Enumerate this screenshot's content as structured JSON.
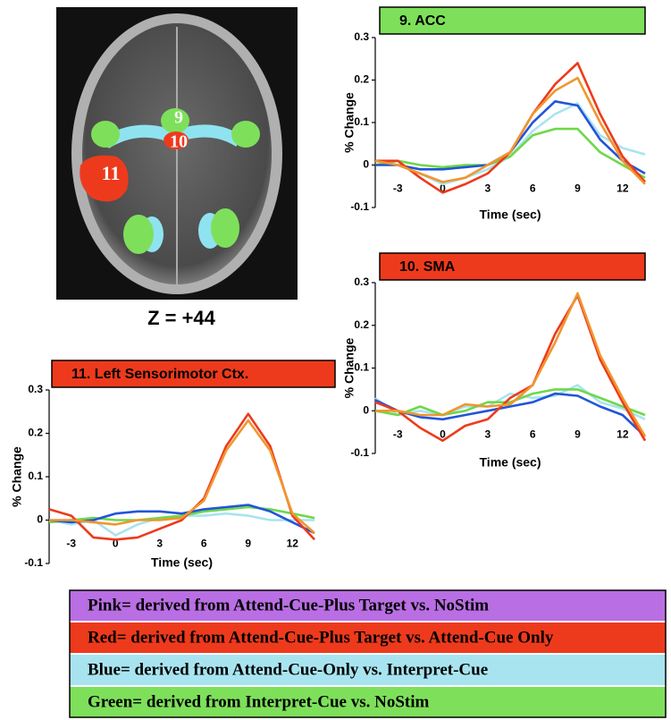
{
  "brain": {
    "labels": [
      "9",
      "10",
      "11"
    ],
    "caption": "Z = +44"
  },
  "chart_data": [
    {
      "type": "line",
      "title": "9. ACC",
      "title_color": "#7ee05a",
      "y_label": "% Change",
      "x_label": "Time (sec)",
      "x": [
        -4.5,
        -3,
        -1.5,
        0,
        1.5,
        3,
        4.5,
        6,
        7.5,
        9,
        10.5,
        12,
        13.5
      ],
      "xlim": [
        -4.5,
        13.5
      ],
      "xticks": [
        -3,
        0,
        3,
        6,
        9,
        12
      ],
      "ylim": [
        -0.1,
        0.3
      ],
      "yticks": [
        0.3,
        0.2,
        0.1,
        0,
        -0.1
      ],
      "series": [
        {
          "color": "#a8e4f0",
          "values": [
            0.01,
            0,
            -0.02,
            -0.045,
            -0.03,
            -0.01,
            0.02,
            0.08,
            0.12,
            0.145,
            0.07,
            0.04,
            0.025
          ]
        },
        {
          "color": "#6ed84a",
          "values": [
            0,
            0.01,
            0,
            -0.005,
            0,
            0,
            0.02,
            0.07,
            0.085,
            0.085,
            0.03,
            0,
            -0.03
          ]
        },
        {
          "color": "#2255d8",
          "values": [
            0,
            0,
            -0.01,
            -0.01,
            -0.005,
            0,
            0.03,
            0.1,
            0.15,
            0.14,
            0.06,
            0.01,
            -0.02
          ]
        },
        {
          "color": "#ee3a1c",
          "values": [
            0.01,
            0.01,
            -0.03,
            -0.065,
            -0.045,
            -0.02,
            0.03,
            0.12,
            0.19,
            0.24,
            0.12,
            0.02,
            -0.04
          ]
        },
        {
          "color": "#f0962e",
          "values": [
            0.01,
            0,
            -0.02,
            -0.04,
            -0.03,
            0,
            0.03,
            0.12,
            0.175,
            0.205,
            0.1,
            0.01,
            -0.045
          ]
        }
      ]
    },
    {
      "type": "line",
      "title": "10. SMA",
      "title_color": "#ee3a1c",
      "y_label": "% Change",
      "x_label": "Time (sec)",
      "x": [
        -4.5,
        -3,
        -1.5,
        0,
        1.5,
        3,
        4.5,
        6,
        7.5,
        9,
        10.5,
        12,
        13.5
      ],
      "xlim": [
        -4.5,
        13.5
      ],
      "xticks": [
        -3,
        0,
        3,
        6,
        9,
        12
      ],
      "ylim": [
        -0.1,
        0.3
      ],
      "yticks": [
        0.3,
        0.2,
        0.1,
        0,
        -0.1
      ],
      "series": [
        {
          "color": "#a8e4f0",
          "values": [
            0.03,
            -0.01,
            0,
            -0.01,
            0.01,
            0.01,
            0.04,
            0.03,
            0.035,
            0.06,
            0.02,
            0.005,
            -0.02
          ]
        },
        {
          "color": "#6ed84a",
          "values": [
            0,
            -0.01,
            0.01,
            -0.01,
            0,
            0.02,
            0.02,
            0.04,
            0.05,
            0.05,
            0.03,
            0.01,
            -0.01
          ]
        },
        {
          "color": "#2255d8",
          "values": [
            0.025,
            0,
            -0.015,
            -0.02,
            -0.01,
            0,
            0.01,
            0.02,
            0.04,
            0.035,
            0.01,
            -0.01,
            -0.06
          ]
        },
        {
          "color": "#ee3a1c",
          "values": [
            0.02,
            0,
            -0.04,
            -0.07,
            -0.035,
            -0.02,
            0.03,
            0.06,
            0.18,
            0.27,
            0.12,
            0.02,
            -0.07
          ]
        },
        {
          "color": "#f0962e",
          "values": [
            0,
            0,
            -0.01,
            -0.01,
            0.015,
            0.01,
            0.015,
            0.06,
            0.16,
            0.275,
            0.13,
            0.03,
            -0.06
          ]
        }
      ]
    },
    {
      "type": "line",
      "title": "11. Left Sensorimotor Ctx.",
      "title_color": "#ee3a1c",
      "y_label": "% Change",
      "x_label": "Time (sec)",
      "x": [
        -4.5,
        -3,
        -1.5,
        0,
        1.5,
        3,
        4.5,
        6,
        7.5,
        9,
        10.5,
        12,
        13.5
      ],
      "xlim": [
        -4.5,
        13.5
      ],
      "xticks": [
        -3,
        0,
        3,
        6,
        9,
        12
      ],
      "ylim": [
        -0.1,
        0.3
      ],
      "yticks": [
        0.3,
        0.2,
        0.1,
        0,
        -0.1
      ],
      "series": [
        {
          "color": "#a8e4f0",
          "values": [
            0,
            -0.01,
            0,
            -0.035,
            -0.01,
            0.005,
            0.01,
            0.01,
            0.015,
            0.01,
            0,
            0,
            0
          ]
        },
        {
          "color": "#6ed84a",
          "values": [
            -0.005,
            0,
            0.005,
            0,
            0,
            0.005,
            0.01,
            0.02,
            0.025,
            0.03,
            0.025,
            0.015,
            0.005
          ]
        },
        {
          "color": "#2255d8",
          "values": [
            0,
            -0.005,
            0,
            0.015,
            0.02,
            0.02,
            0.015,
            0.025,
            0.03,
            0.035,
            0.02,
            -0.005,
            -0.03
          ]
        },
        {
          "color": "#ee3a1c",
          "values": [
            0.025,
            0.01,
            -0.04,
            -0.045,
            -0.04,
            -0.02,
            0,
            0.05,
            0.17,
            0.245,
            0.17,
            0.01,
            -0.045
          ]
        },
        {
          "color": "#f0962e",
          "values": [
            0,
            0,
            -0.005,
            -0.01,
            0,
            0,
            0.005,
            0.045,
            0.16,
            0.23,
            0.16,
            0.015,
            -0.03
          ]
        }
      ]
    }
  ],
  "legend": {
    "items": [
      {
        "text": "Pink= derived from Attend-Cue-Plus Target vs. NoStim",
        "color": "#b96fe3"
      },
      {
        "text": "Red= derived from Attend-Cue-Plus Target vs. Attend-Cue Only",
        "color": "#ee3a1c"
      },
      {
        "text": "Blue= derived from Attend-Cue-Only vs. Interpret-Cue",
        "color": "#a8e4f0"
      },
      {
        "text": "Green= derived from Interpret-Cue vs. NoStim",
        "color": "#7ee05a"
      }
    ]
  }
}
